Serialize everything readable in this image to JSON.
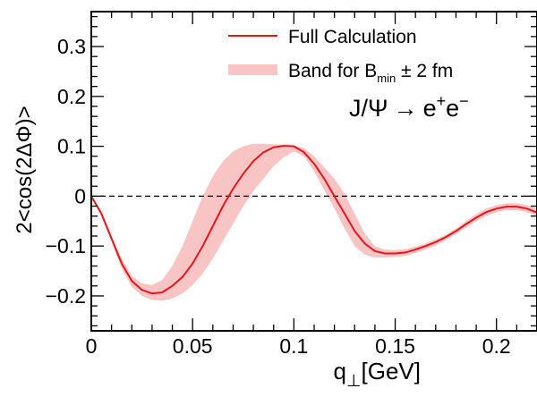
{
  "chart_data": {
    "type": "line",
    "xlabel": "q",
    "xlabel_sub": "⊥",
    "xlabel_unit": "[GeV]",
    "ylabel": "2<cos(2ΔΦ)>",
    "xlim": [
      0,
      0.22
    ],
    "ylim": [
      -0.27,
      0.37
    ],
    "x_ticks": [
      0,
      0.05,
      0.1,
      0.15,
      0.2
    ],
    "x_tick_labels": [
      "0",
      "0.05",
      "0.1",
      "0.15",
      "0.2"
    ],
    "y_ticks": [
      -0.2,
      -0.1,
      0,
      0.1,
      0.2,
      0.3
    ],
    "y_tick_labels": [
      "−0.2",
      "−0.1",
      "0",
      "0.1",
      "0.2",
      "0.3"
    ],
    "reference_line": {
      "y": 0,
      "style": "dashed"
    },
    "legend": {
      "position": "top-right",
      "entries": [
        {
          "label": "Full Calculation",
          "kind": "line",
          "color": "#e8141c"
        },
        {
          "label_main": "Band for B",
          "label_sub": "min",
          "label_rest": " ± 2 fm",
          "kind": "band",
          "color": "#f8c4c4"
        }
      ]
    },
    "annotation": {
      "lhs": "J/Ψ",
      "arrow": "→",
      "e1": "e",
      "sup1": "+",
      "e2": "e",
      "sup2": "−",
      "position": "upper-right"
    },
    "series": [
      {
        "name": "Full Calculation",
        "color": "#e8141c",
        "x": [
          0,
          0.005,
          0.01,
          0.015,
          0.02,
          0.025,
          0.03,
          0.035,
          0.04,
          0.045,
          0.05,
          0.055,
          0.06,
          0.065,
          0.07,
          0.075,
          0.08,
          0.085,
          0.09,
          0.095,
          0.1,
          0.105,
          0.11,
          0.115,
          0.12,
          0.125,
          0.13,
          0.135,
          0.14,
          0.145,
          0.15,
          0.155,
          0.16,
          0.165,
          0.17,
          0.175,
          0.18,
          0.185,
          0.19,
          0.195,
          0.2,
          0.205,
          0.21,
          0.215,
          0.22
        ],
        "y": [
          0,
          -0.035,
          -0.085,
          -0.135,
          -0.17,
          -0.188,
          -0.195,
          -0.193,
          -0.18,
          -0.162,
          -0.135,
          -0.1,
          -0.06,
          -0.02,
          0.015,
          0.045,
          0.07,
          0.088,
          0.098,
          0.101,
          0.1,
          0.088,
          0.065,
          0.035,
          0.0,
          -0.035,
          -0.07,
          -0.095,
          -0.11,
          -0.115,
          -0.115,
          -0.113,
          -0.107,
          -0.1,
          -0.092,
          -0.082,
          -0.07,
          -0.056,
          -0.043,
          -0.032,
          -0.025,
          -0.021,
          -0.021,
          -0.025,
          -0.033
        ]
      },
      {
        "name": "Band for B_min ± 2 fm",
        "kind": "band",
        "color": "#f8c4c4",
        "x": [
          0,
          0.005,
          0.01,
          0.015,
          0.02,
          0.025,
          0.03,
          0.035,
          0.04,
          0.045,
          0.05,
          0.055,
          0.06,
          0.065,
          0.07,
          0.075,
          0.08,
          0.085,
          0.09,
          0.095,
          0.1,
          0.105,
          0.11,
          0.115,
          0.12,
          0.125,
          0.13,
          0.135,
          0.14,
          0.145,
          0.15,
          0.155,
          0.16,
          0.165,
          0.17,
          0.175,
          0.18,
          0.185,
          0.19,
          0.195,
          0.2,
          0.205,
          0.21,
          0.215,
          0.22
        ],
        "upper": [
          0,
          -0.03,
          -0.08,
          -0.125,
          -0.16,
          -0.175,
          -0.178,
          -0.168,
          -0.14,
          -0.1,
          -0.05,
          0.0,
          0.04,
          0.07,
          0.09,
          0.1,
          0.105,
          0.105,
          0.104,
          0.103,
          0.102,
          0.096,
          0.08,
          0.058,
          0.035,
          0.005,
          -0.035,
          -0.075,
          -0.1,
          -0.107,
          -0.108,
          -0.106,
          -0.101,
          -0.095,
          -0.087,
          -0.078,
          -0.065,
          -0.05,
          -0.036,
          -0.025,
          -0.018,
          -0.014,
          -0.014,
          -0.018,
          -0.025
        ],
        "lower": [
          0,
          -0.04,
          -0.09,
          -0.145,
          -0.182,
          -0.2,
          -0.208,
          -0.21,
          -0.205,
          -0.195,
          -0.178,
          -0.155,
          -0.125,
          -0.09,
          -0.055,
          -0.02,
          0.01,
          0.035,
          0.06,
          0.078,
          0.09,
          0.08,
          0.05,
          0.012,
          -0.025,
          -0.065,
          -0.1,
          -0.117,
          -0.123,
          -0.123,
          -0.122,
          -0.12,
          -0.114,
          -0.107,
          -0.099,
          -0.088,
          -0.076,
          -0.063,
          -0.05,
          -0.04,
          -0.032,
          -0.028,
          -0.028,
          -0.032,
          -0.04
        ]
      }
    ]
  }
}
